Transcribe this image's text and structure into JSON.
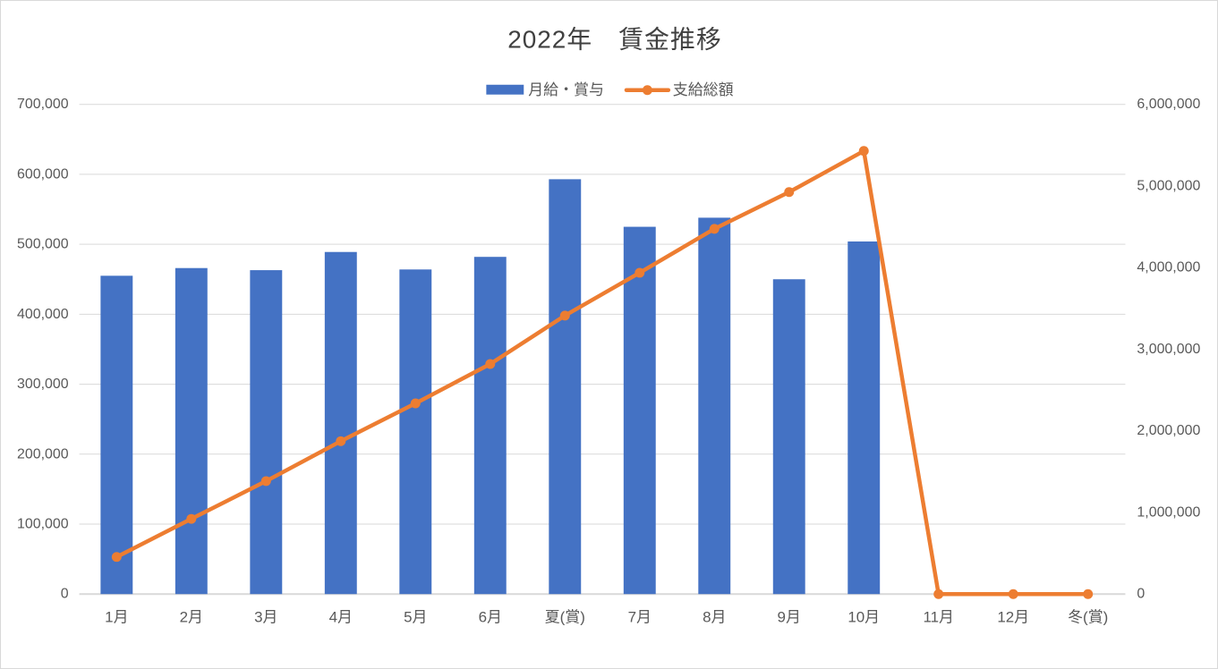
{
  "title": "2022年　賃金推移",
  "legend": {
    "bar_label": "月給・賞与",
    "line_label": "支給総額"
  },
  "chart_data": {
    "type": "combo",
    "title": "2022年　賃金推移",
    "categories": [
      "1月",
      "2月",
      "3月",
      "4月",
      "5月",
      "6月",
      "夏(賞)",
      "7月",
      "8月",
      "9月",
      "10月",
      "11月",
      "12月",
      "冬(賞)"
    ],
    "series": [
      {
        "name": "月給・賞与",
        "type": "bar",
        "axis": "left",
        "color": "#4472C4",
        "values": [
          455000,
          466000,
          463000,
          489000,
          464000,
          482000,
          593000,
          525000,
          538000,
          450000,
          504000,
          0,
          0,
          0
        ]
      },
      {
        "name": "支給総額",
        "type": "line",
        "axis": "right",
        "color": "#ED7D31",
        "values": [
          455000,
          921000,
          1384000,
          1873000,
          2337000,
          2819000,
          3412000,
          3937000,
          4475000,
          4925000,
          5429000,
          0,
          0,
          0
        ]
      }
    ],
    "left_axis": {
      "min": 0,
      "max": 700000,
      "step": 100000,
      "tick_labels": [
        "0",
        "100,000",
        "200,000",
        "300,000",
        "400,000",
        "500,000",
        "600,000",
        "700,000"
      ]
    },
    "right_axis": {
      "min": 0,
      "max": 6000000,
      "step": 1000000,
      "tick_labels": [
        "0",
        "1,000,000",
        "2,000,000",
        "3,000,000",
        "4,000,000",
        "5,000,000",
        "6,000,000"
      ]
    },
    "grid": true,
    "legend_position": "top-center"
  },
  "colors": {
    "bar": "#4472C4",
    "line": "#ED7D31",
    "grid": "#D9D9D9",
    "axis_line": "#D9D9D9",
    "axis_text": "#595959",
    "title_text": "#404040",
    "background": "#FFFFFF",
    "border": "#D9D9D9"
  }
}
